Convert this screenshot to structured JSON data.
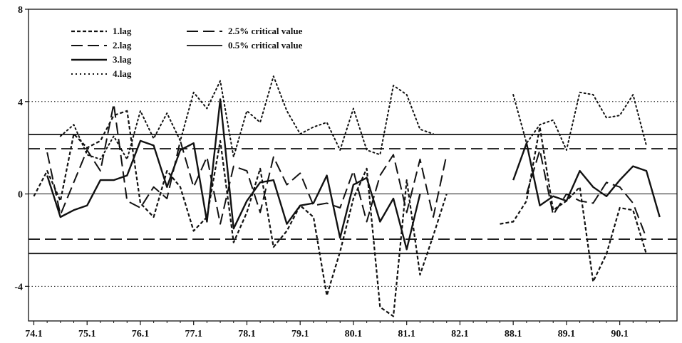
{
  "chart_data": {
    "type": "line",
    "title": "",
    "xlabel": "",
    "ylabel": "",
    "ylim": [
      -5.5,
      8
    ],
    "y_ticks": [
      {
        "value": 8,
        "label": "8"
      },
      {
        "value": 4,
        "label": "4"
      },
      {
        "value": 0,
        "label": "0"
      },
      {
        "value": -4,
        "label": "-4"
      }
    ],
    "x_ticks": [
      {
        "x": 0,
        "label": "74.1"
      },
      {
        "x": 4,
        "label": "75.1"
      },
      {
        "x": 8,
        "label": "76.1"
      },
      {
        "x": 12,
        "label": "77.1"
      },
      {
        "x": 16,
        "label": "78.1"
      },
      {
        "x": 20,
        "label": "79.1"
      },
      {
        "x": 24,
        "label": "80.1"
      },
      {
        "x": 28,
        "label": "81.1"
      },
      {
        "x": 32,
        "label": "82.1"
      },
      {
        "x": 36,
        "label": "88.1"
      },
      {
        "x": 40,
        "label": "89.1"
      },
      {
        "x": 44,
        "label": "90.1"
      }
    ],
    "xlim": [
      -0.4,
      48.3
    ],
    "grid": false,
    "reference_lines": [
      {
        "name": "2.5% critical value",
        "values": [
          1.96,
          -1.96
        ],
        "style": "longdash"
      },
      {
        "name": "0.5% critical value",
        "values": [
          2.58,
          -2.58
        ],
        "style": "solid"
      },
      {
        "values": [
          4,
          -4
        ],
        "style": "dotted"
      },
      {
        "values": [
          0
        ],
        "style": "solid-thin"
      }
    ],
    "series": [
      {
        "name": "1.lag",
        "style": "shortdash",
        "x": [
          0,
          1,
          2,
          3,
          4,
          5,
          6,
          7,
          8,
          9,
          10,
          11,
          12,
          13,
          14,
          15,
          16,
          17,
          18,
          19,
          20,
          21,
          22,
          23,
          24,
          25,
          26,
          27,
          28,
          29,
          30,
          31,
          32,
          33,
          35,
          36,
          37,
          38,
          39,
          40,
          41,
          42,
          43,
          44,
          45,
          46,
          47,
          48
        ],
        "y": [
          -0.1,
          1.0,
          -0.3,
          2.6,
          2.0,
          2.3,
          3.4,
          3.6,
          -0.4,
          -1.0,
          1.0,
          0.3,
          -1.6,
          -1.0,
          2.3,
          -2.1,
          -0.8,
          1.1,
          -2.3,
          -1.6,
          -0.5,
          -1.0,
          -4.4,
          -2.5,
          -0.2,
          1.1,
          -4.9,
          -5.3,
          0.6,
          -3.5,
          -1.8,
          0.0,
          null,
          null,
          -1.3,
          -1.2,
          -0.3,
          2.9,
          -0.7,
          -0.3,
          0.3,
          -3.8,
          -2.6,
          -0.6,
          -0.7,
          -2.6,
          null,
          null
        ]
      },
      {
        "name": "2.lag",
        "style": "longdash",
        "x": [
          0,
          1,
          2,
          3,
          4,
          5,
          6,
          7,
          8,
          9,
          10,
          11,
          12,
          13,
          14,
          15,
          16,
          17,
          18,
          19,
          20,
          21,
          22,
          23,
          24,
          25,
          26,
          27,
          28,
          29,
          30,
          31,
          32,
          33,
          35,
          36,
          37,
          38,
          39,
          40,
          41,
          42,
          43,
          44,
          45,
          46,
          47,
          48
        ],
        "y": [
          null,
          1.8,
          -0.9,
          0.5,
          1.9,
          1.0,
          3.9,
          -0.3,
          -0.6,
          0.3,
          -0.2,
          2.3,
          0.3,
          1.6,
          -1.3,
          1.2,
          1.0,
          -0.8,
          1.6,
          0.4,
          0.9,
          -0.5,
          -0.4,
          -0.6,
          1.0,
          -1.2,
          0.8,
          1.7,
          -0.8,
          1.5,
          -1.0,
          1.7,
          null,
          null,
          null,
          null,
          0.0,
          1.9,
          -0.9,
          0.0,
          -0.3,
          -0.4,
          0.5,
          0.3,
          -0.4,
          -1.9,
          null,
          null
        ]
      },
      {
        "name": "3.lag",
        "style": "solid",
        "x": [
          0,
          1,
          2,
          3,
          4,
          5,
          6,
          7,
          8,
          9,
          10,
          11,
          12,
          13,
          14,
          15,
          16,
          17,
          18,
          19,
          20,
          21,
          22,
          23,
          24,
          25,
          26,
          27,
          28,
          29,
          30,
          31,
          32,
          33,
          35,
          36,
          37,
          38,
          39,
          40,
          41,
          42,
          43,
          44,
          45,
          46,
          47,
          48
        ],
        "y": [
          null,
          0.8,
          -1.0,
          -0.7,
          -0.5,
          0.6,
          0.6,
          0.8,
          2.3,
          2.1,
          0.3,
          1.9,
          2.2,
          -1.2,
          4.1,
          -1.5,
          -0.3,
          0.5,
          0.6,
          -1.3,
          -0.5,
          -0.4,
          0.8,
          -1.9,
          0.4,
          0.7,
          -1.2,
          -0.2,
          -2.4,
          0.0,
          null,
          null,
          null,
          null,
          null,
          0.6,
          2.2,
          -0.5,
          -0.1,
          -0.3,
          1.0,
          0.3,
          -0.1,
          0.6,
          1.2,
          1.0,
          -1.0,
          null
        ]
      },
      {
        "name": "4.lag",
        "style": "dotted",
        "x": [
          0,
          1,
          2,
          3,
          4,
          5,
          6,
          7,
          8,
          9,
          10,
          11,
          12,
          13,
          14,
          15,
          16,
          17,
          18,
          19,
          20,
          21,
          22,
          23,
          24,
          25,
          26,
          27,
          28,
          29,
          30,
          31,
          32,
          33,
          35,
          36,
          37,
          38,
          39,
          40,
          41,
          42,
          43,
          44,
          45,
          46,
          47,
          48
        ],
        "y": [
          null,
          null,
          2.5,
          3.0,
          1.7,
          1.5,
          2.5,
          1.5,
          3.6,
          2.4,
          3.5,
          2.3,
          4.4,
          3.7,
          4.9,
          1.6,
          3.6,
          3.1,
          5.1,
          3.6,
          2.6,
          2.9,
          3.1,
          1.9,
          3.7,
          1.9,
          1.7,
          4.7,
          4.3,
          2.8,
          2.6,
          null,
          null,
          null,
          null,
          4.3,
          2.2,
          3.0,
          3.2,
          1.9,
          4.4,
          4.3,
          3.3,
          3.4,
          4.3,
          2.1,
          null,
          null
        ]
      }
    ],
    "legend": {
      "placement": "top-left",
      "entries": [
        {
          "label": "1.lag",
          "style": "shortdash"
        },
        {
          "label": "2.lag",
          "style": "longdash"
        },
        {
          "label": "3.lag",
          "style": "solid"
        },
        {
          "label": "4.lag",
          "style": "dotted"
        },
        {
          "label": "2.5% critical value",
          "style": "longdash"
        },
        {
          "label": "0.5% critical value",
          "style": "solid"
        }
      ]
    }
  }
}
